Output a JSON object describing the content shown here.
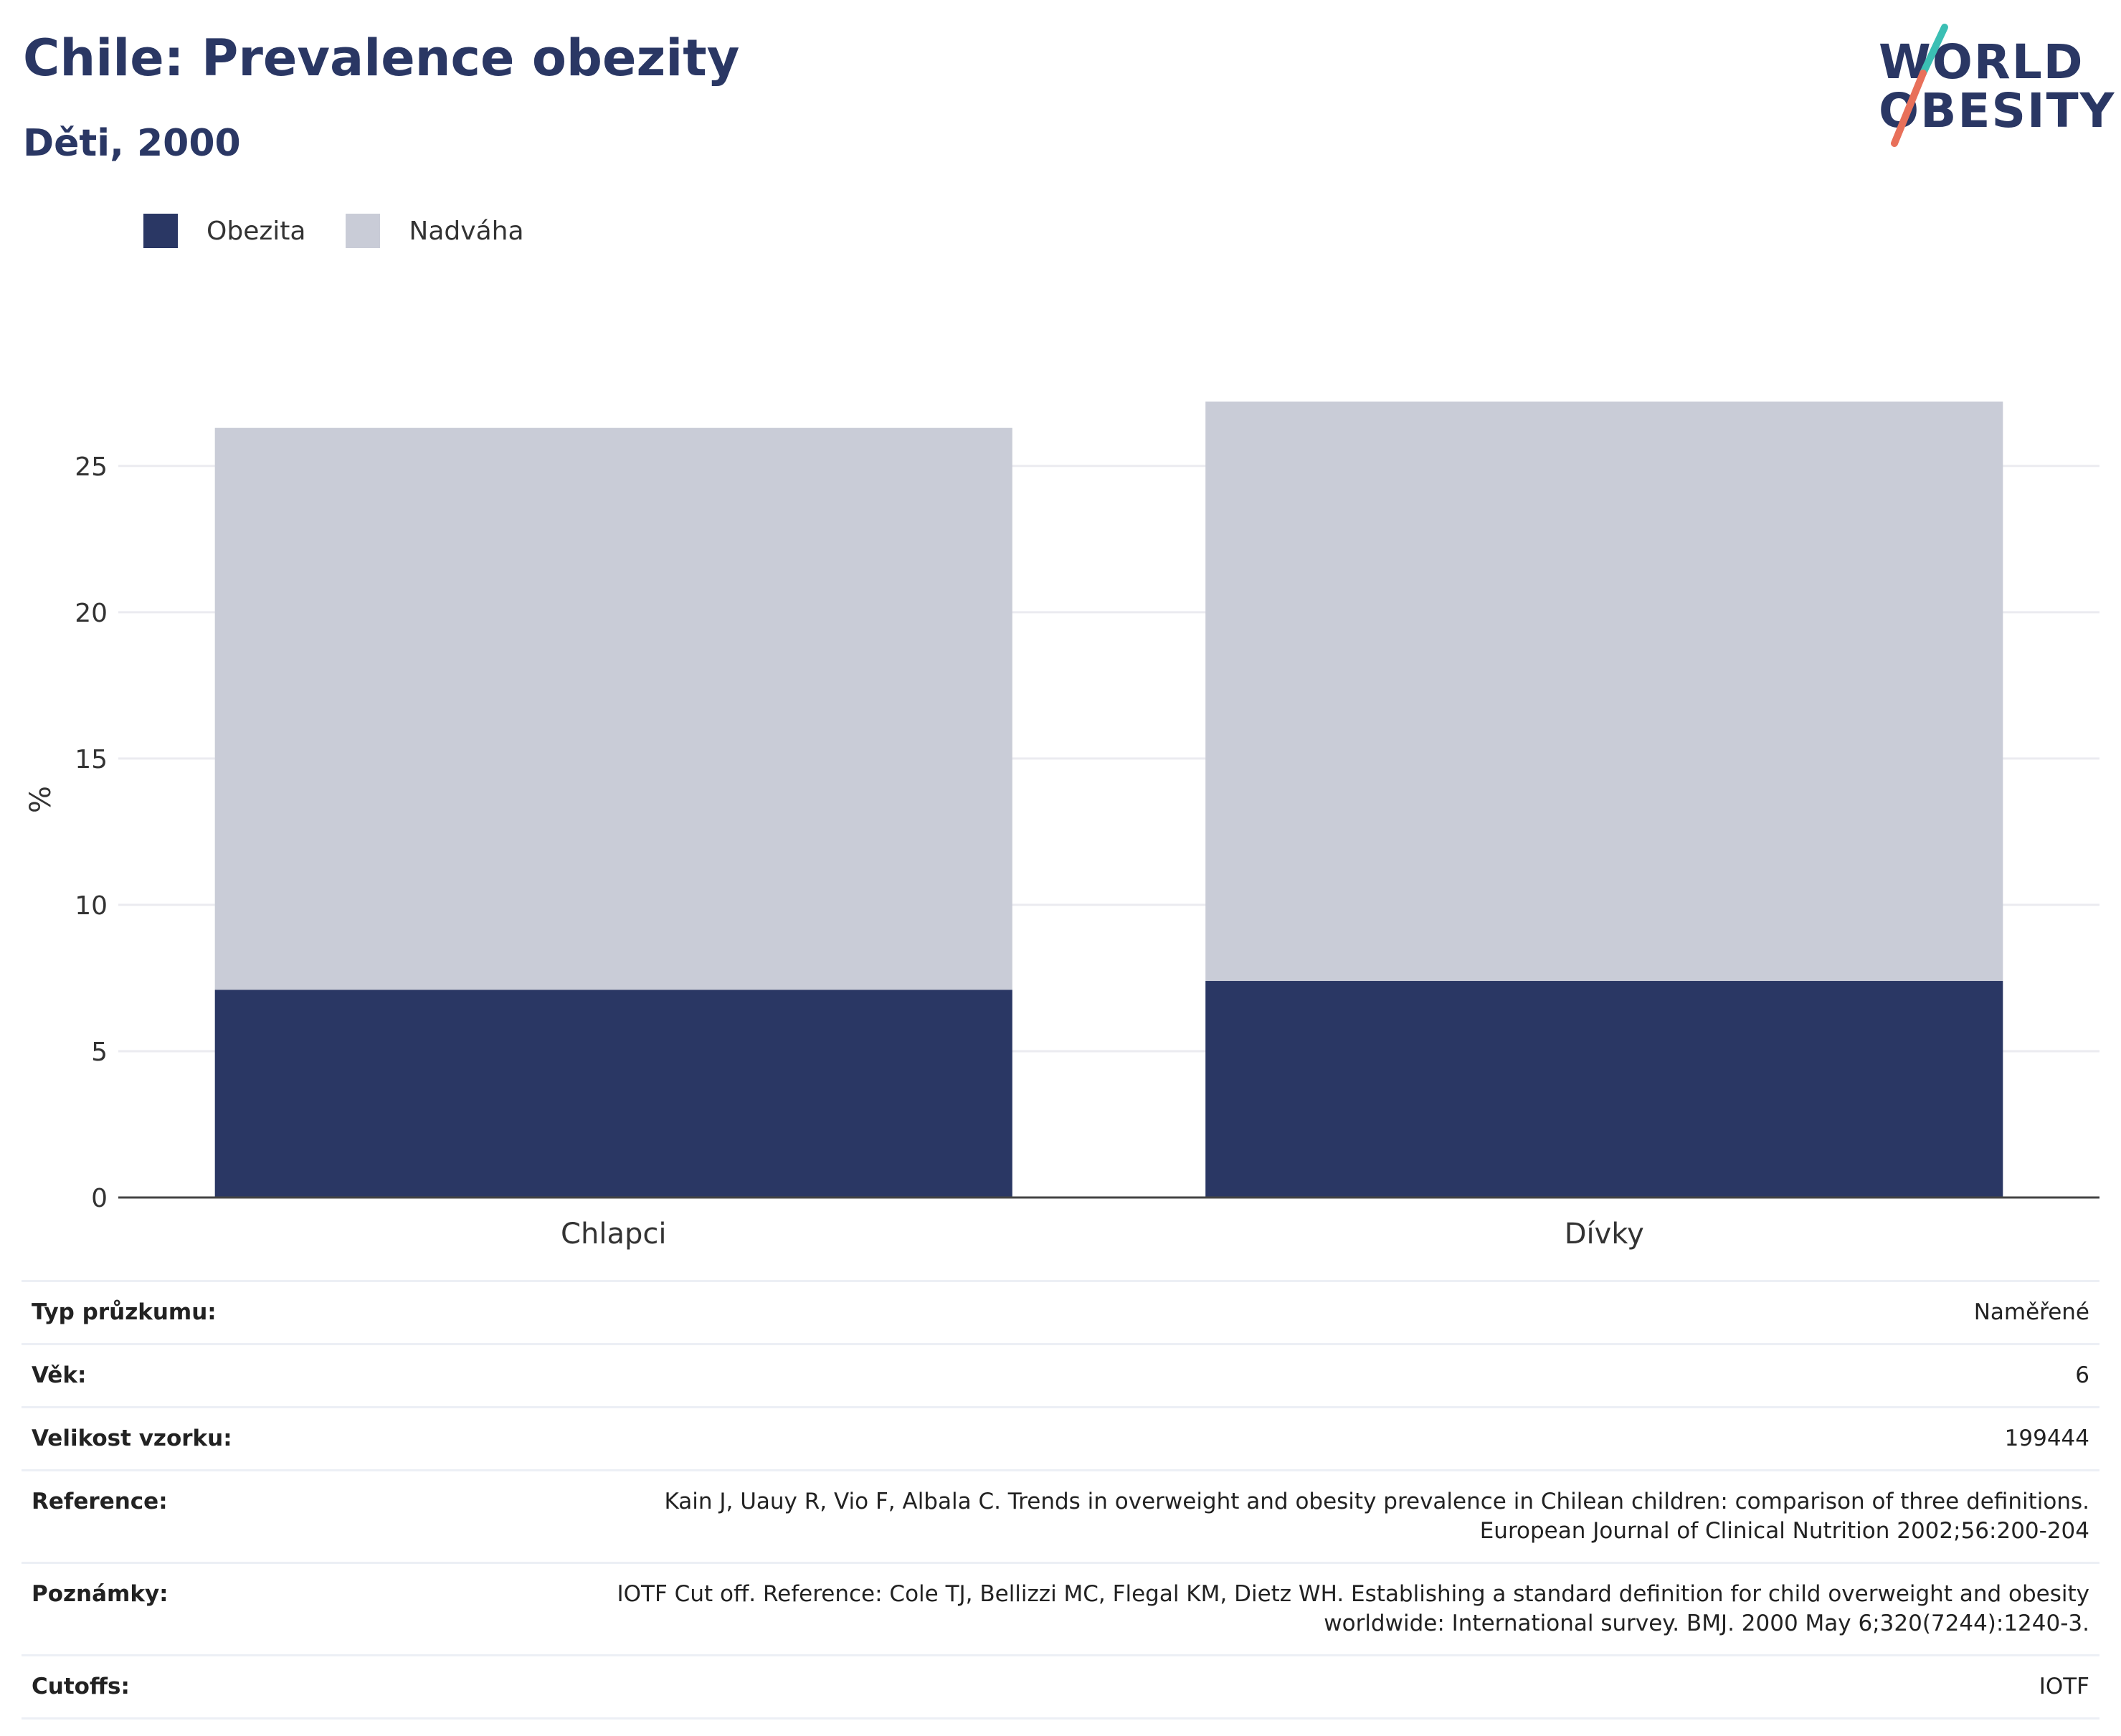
{
  "header": {
    "title": "Chile: Prevalence obezity",
    "subtitle": "Děti, 2000"
  },
  "logo": {
    "line1": "WORLD",
    "line2": "OBESITY"
  },
  "legend": [
    {
      "label": "Obezita",
      "color": "#2a3764"
    },
    {
      "label": "Nadváha",
      "color": "#c9ccd7"
    }
  ],
  "chart_data": {
    "type": "bar",
    "stacked": true,
    "categories": [
      "Chlapci",
      "Dívky"
    ],
    "series": [
      {
        "name": "Obezita",
        "values": [
          7.1,
          7.4
        ],
        "color": "#2a3764"
      },
      {
        "name": "Nadváha",
        "values": [
          19.2,
          19.8
        ],
        "color": "#c9ccd7"
      }
    ],
    "ylabel": "%",
    "ylim": [
      0,
      27.2
    ],
    "yticks": [
      0,
      5,
      10,
      15,
      20,
      25
    ],
    "grid": true,
    "legend_position": "top-left"
  },
  "info": [
    {
      "label": "Typ průzkumu:",
      "value": [
        "Naměřené"
      ]
    },
    {
      "label": "Věk:",
      "value": [
        "6"
      ]
    },
    {
      "label": "Velikost vzorku:",
      "value": [
        "199444"
      ]
    },
    {
      "label": "Reference:",
      "value": [
        "Kain J, Uauy R, Vio F, Albala C. Trends in overweight and obesity prevalence in Chilean children: comparison of three definitions.",
        "European Journal of Clinical Nutrition 2002;56:200-204"
      ]
    },
    {
      "label": "Poznámky:",
      "value": [
        "IOTF Cut off. Reference: Cole TJ, Bellizzi MC, Flegal KM, Dietz WH. Establishing a standard definition for child overweight and obesity",
        "worldwide: International survey. BMJ. 2000 May 6;320(7244):1240-3."
      ]
    },
    {
      "label": "Cutoffs:",
      "value": [
        "IOTF"
      ]
    }
  ],
  "colors": {
    "accent_teal": "#3bbfb4",
    "accent_coral": "#e8705a"
  }
}
